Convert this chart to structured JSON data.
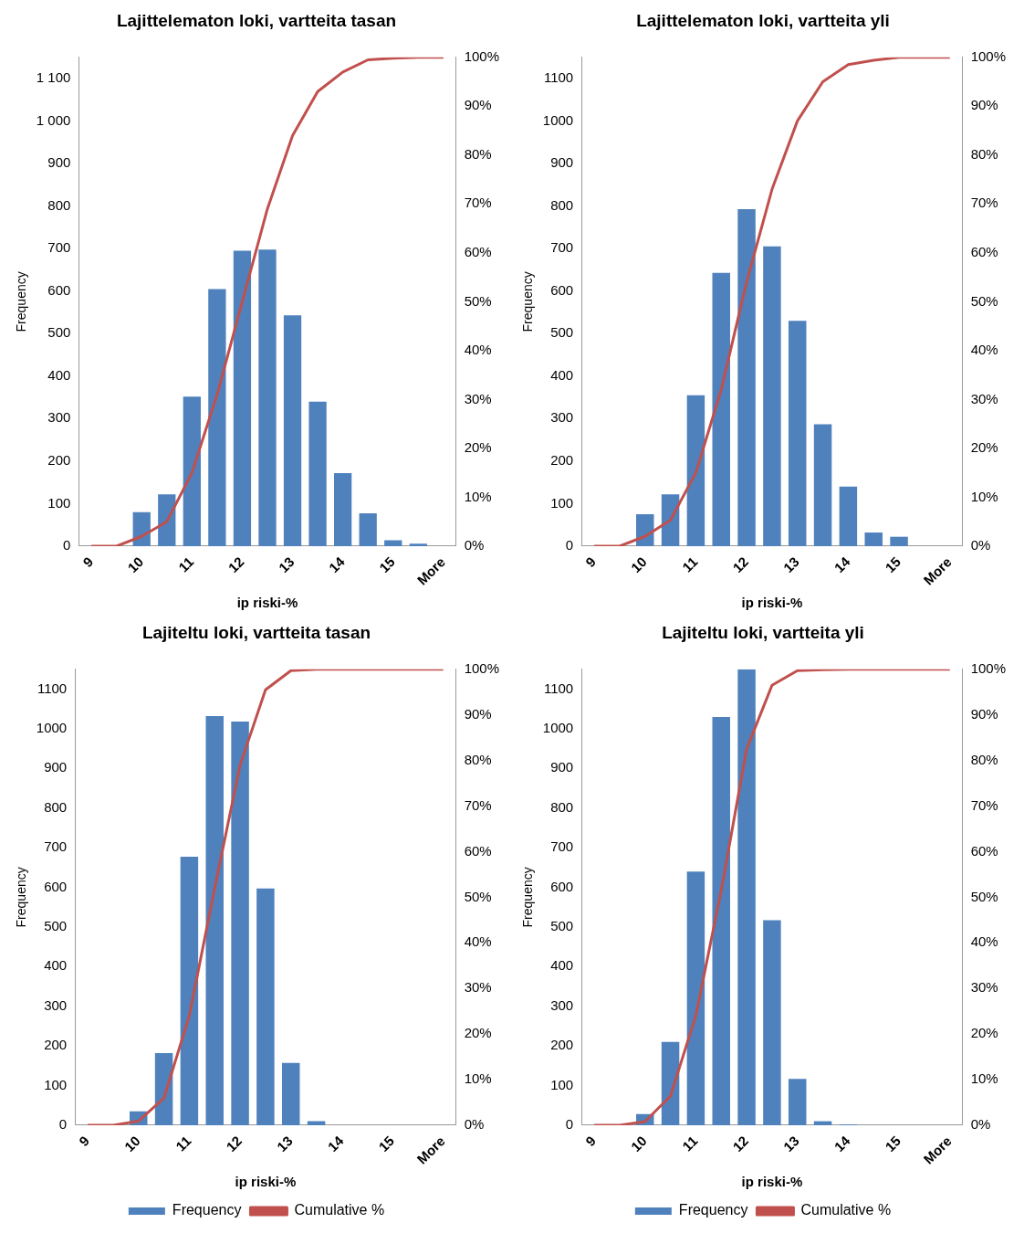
{
  "chart_data": [
    {
      "type": "bar",
      "title": "Lajittelematon loki, vartteita tasan",
      "xlabel": "ip riski-%",
      "ylabel": "Frequency",
      "categories": [
        "9",
        null,
        "10",
        null,
        "11",
        null,
        "12",
        null,
        "13",
        null,
        "14",
        null,
        "15",
        null,
        "More"
      ],
      "series": [
        {
          "color": "#4f81bd",
          "values": [
            0,
            0,
            80,
            122,
            352,
            605,
            695,
            698,
            543,
            340,
            172,
            77,
            14,
            6,
            0
          ]
        },
        {
          "type": "line",
          "axis": "y2",
          "color": "#c0504d",
          "values": [
            0,
            0,
            2,
            5,
            15,
            31,
            50,
            69,
            84,
            93,
            97,
            99.5,
            99.8,
            100,
            100
          ]
        }
      ],
      "ylim": [
        0,
        1150
      ],
      "yticks": [
        0,
        100,
        200,
        300,
        400,
        500,
        600,
        700,
        800,
        900,
        {
          "value": 1000,
          "label": "1 000"
        },
        {
          "value": 1100,
          "label": "1 100"
        }
      ],
      "y2lim": [
        0,
        100
      ],
      "y2ticks": [
        {
          "value": 0,
          "label": "0%"
        },
        {
          "value": 10,
          "label": "10%"
        },
        {
          "value": 20,
          "label": "20%"
        },
        {
          "value": 30,
          "label": "30%"
        },
        {
          "value": 40,
          "label": "40%"
        },
        {
          "value": 50,
          "label": "50%"
        },
        {
          "value": 60,
          "label": "60%"
        },
        {
          "value": 70,
          "label": "70%"
        },
        {
          "value": 80,
          "label": "80%"
        },
        {
          "value": 90,
          "label": "90%"
        },
        {
          "value": 100,
          "label": "100%"
        }
      ],
      "grid": false,
      "legend": false,
      "marker": "none"
    },
    {
      "type": "bar",
      "title": "Lajittelematon loki, vartteita yli",
      "xlabel": "ip riski-%",
      "ylabel": "Frequency",
      "categories": [
        "9",
        null,
        "10",
        null,
        "11",
        null,
        "12",
        null,
        "13",
        null,
        "14",
        null,
        "15",
        null,
        "More"
      ],
      "series": [
        {
          "color": "#4f81bd",
          "values": [
            0,
            0,
            75,
            122,
            355,
            643,
            793,
            705,
            530,
            287,
            140,
            32,
            22,
            0,
            0
          ]
        },
        {
          "type": "line",
          "axis": "y2",
          "color": "#c0504d",
          "values": [
            0,
            0,
            2,
            5.3,
            15,
            32,
            54,
            73,
            87,
            95,
            98.5,
            99.4,
            100,
            100,
            100
          ]
        }
      ],
      "ylim": [
        0,
        1150
      ],
      "yticks": [
        0,
        100,
        200,
        300,
        400,
        500,
        600,
        700,
        800,
        900,
        1000,
        1100
      ],
      "y2lim": [
        0,
        100
      ],
      "y2ticks": [
        {
          "value": 0,
          "label": "0%"
        },
        {
          "value": 10,
          "label": "10%"
        },
        {
          "value": 20,
          "label": "20%"
        },
        {
          "value": 30,
          "label": "30%"
        },
        {
          "value": 40,
          "label": "40%"
        },
        {
          "value": 50,
          "label": "50%"
        },
        {
          "value": 60,
          "label": "60%"
        },
        {
          "value": 70,
          "label": "70%"
        },
        {
          "value": 80,
          "label": "80%"
        },
        {
          "value": 90,
          "label": "90%"
        },
        {
          "value": 100,
          "label": "100%"
        }
      ],
      "grid": false,
      "legend": false,
      "marker": "none"
    },
    {
      "type": "bar",
      "title": "Lajiteltu loki, vartteita tasan",
      "xlabel": "ip riski-%",
      "ylabel": "Frequency",
      "categories": [
        "9",
        null,
        "10",
        null,
        "11",
        null,
        "12",
        null,
        "13",
        null,
        "14",
        null,
        "15",
        null,
        "More"
      ],
      "series": [
        {
          "name": "Frequency",
          "color": "#4f81bd",
          "values": [
            0,
            0,
            35,
            182,
            677,
            1032,
            1018,
            597,
            157,
            10,
            0,
            0,
            0,
            0,
            0
          ]
        },
        {
          "type": "line",
          "name": "Cumulative %",
          "axis": "y2",
          "color": "#c0504d",
          "values": [
            0,
            0,
            0.9,
            5.9,
            24,
            52,
            79,
            95.5,
            99.7,
            100,
            100,
            100,
            100,
            100,
            100
          ]
        }
      ],
      "ylim": [
        0,
        1150
      ],
      "yticks": [
        0,
        100,
        200,
        300,
        400,
        500,
        600,
        700,
        800,
        900,
        1000,
        1100
      ],
      "y2lim": [
        0,
        100
      ],
      "y2ticks": [
        {
          "value": 0,
          "label": "0%"
        },
        {
          "value": 10,
          "label": "10%"
        },
        {
          "value": 20,
          "label": "20%"
        },
        {
          "value": 30,
          "label": "30%"
        },
        {
          "value": 40,
          "label": "40%"
        },
        {
          "value": 50,
          "label": "50%"
        },
        {
          "value": 60,
          "label": "60%"
        },
        {
          "value": 70,
          "label": "70%"
        },
        {
          "value": 80,
          "label": "80%"
        },
        {
          "value": 90,
          "label": "90%"
        },
        {
          "value": 100,
          "label": "100%"
        }
      ],
      "grid": false,
      "legend": "bottom",
      "marker": "none"
    },
    {
      "type": "bar",
      "title": "Lajiteltu loki, vartteita yli",
      "xlabel": "ip riski-%",
      "ylabel": "Frequency",
      "categories": [
        "9",
        null,
        "10",
        null,
        "11",
        null,
        "12",
        null,
        "13",
        null,
        "14",
        null,
        "15",
        null,
        "More"
      ],
      "series": [
        {
          "name": "Frequency",
          "color": "#4f81bd",
          "values": [
            0,
            0,
            28,
            210,
            640,
            1030,
            1150,
            517,
            117,
            10,
            2,
            0,
            0,
            0,
            0
          ]
        },
        {
          "type": "line",
          "name": "Cumulative %",
          "axis": "y2",
          "color": "#c0504d",
          "values": [
            0,
            0,
            0.8,
            6.4,
            24,
            51.5,
            82.5,
            96.5,
            99.7,
            99.9,
            100,
            100,
            100,
            100,
            100
          ]
        }
      ],
      "ylim": [
        0,
        1150
      ],
      "yticks": [
        0,
        100,
        200,
        300,
        400,
        500,
        600,
        700,
        800,
        900,
        1000,
        1100
      ],
      "y2lim": [
        0,
        100
      ],
      "y2ticks": [
        {
          "value": 0,
          "label": "0%"
        },
        {
          "value": 10,
          "label": "10%"
        },
        {
          "value": 20,
          "label": "20%"
        },
        {
          "value": 30,
          "label": "30%"
        },
        {
          "value": 40,
          "label": "40%"
        },
        {
          "value": 50,
          "label": "50%"
        },
        {
          "value": 60,
          "label": "60%"
        },
        {
          "value": 70,
          "label": "70%"
        },
        {
          "value": 80,
          "label": "80%"
        },
        {
          "value": 90,
          "label": "90%"
        },
        {
          "value": 100,
          "label": "100%"
        }
      ],
      "grid": false,
      "legend": "bottom",
      "marker": "none"
    }
  ]
}
